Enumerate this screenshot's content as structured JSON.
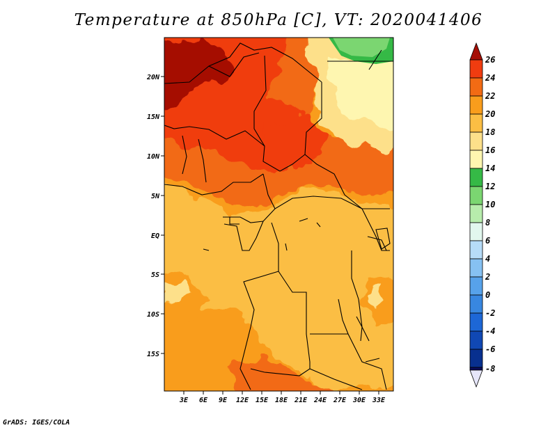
{
  "map": {
    "title": "Temperature at 850hPa [C], VT: 2020041406",
    "lat_labels": [
      "20N",
      "15N",
      "10N",
      "5N",
      "EQ",
      "5S",
      "10S",
      "15S"
    ],
    "lon_labels": [
      "3E",
      "6E",
      "9E",
      "12E",
      "15E",
      "18E",
      "21E",
      "24E",
      "27E",
      "30E",
      "33E"
    ],
    "lon_range": [
      0.5,
      35
    ],
    "lat_range": [
      -19.5,
      24.5
    ]
  },
  "colorbar": {
    "labels": [
      "26",
      "24",
      "22",
      "20",
      "18",
      "16",
      "14",
      "12",
      "10",
      "8",
      "6",
      "4",
      "2",
      "0",
      "-2",
      "-4",
      "-6",
      "-8"
    ],
    "colors": {
      "gt26": "#a50f06",
      "24_26": "#f03c10",
      "22_24": "#f26b14",
      "20_22": "#f99d1c",
      "18_20": "#fbbe44",
      "16_18": "#fde08a",
      "14_16": "#fef6b0",
      "12_14": "#35b946",
      "10_12": "#7bd671",
      "8_10": "#b7ecac",
      "6_8": "#e2f7ee",
      "4_6": "#b6dcf8",
      "2_4": "#86c1f2",
      "0_2": "#57a2ea",
      "m2_0": "#3887e0",
      "m4_m2": "#1d67d6",
      "m6_m4": "#1048b4",
      "m8_m6": "#08308f",
      "lt_m8": "#0b0d5c",
      "below_range": "#e6e6fa"
    }
  },
  "footer": {
    "credit": "GrADS: IGES/COLA"
  }
}
